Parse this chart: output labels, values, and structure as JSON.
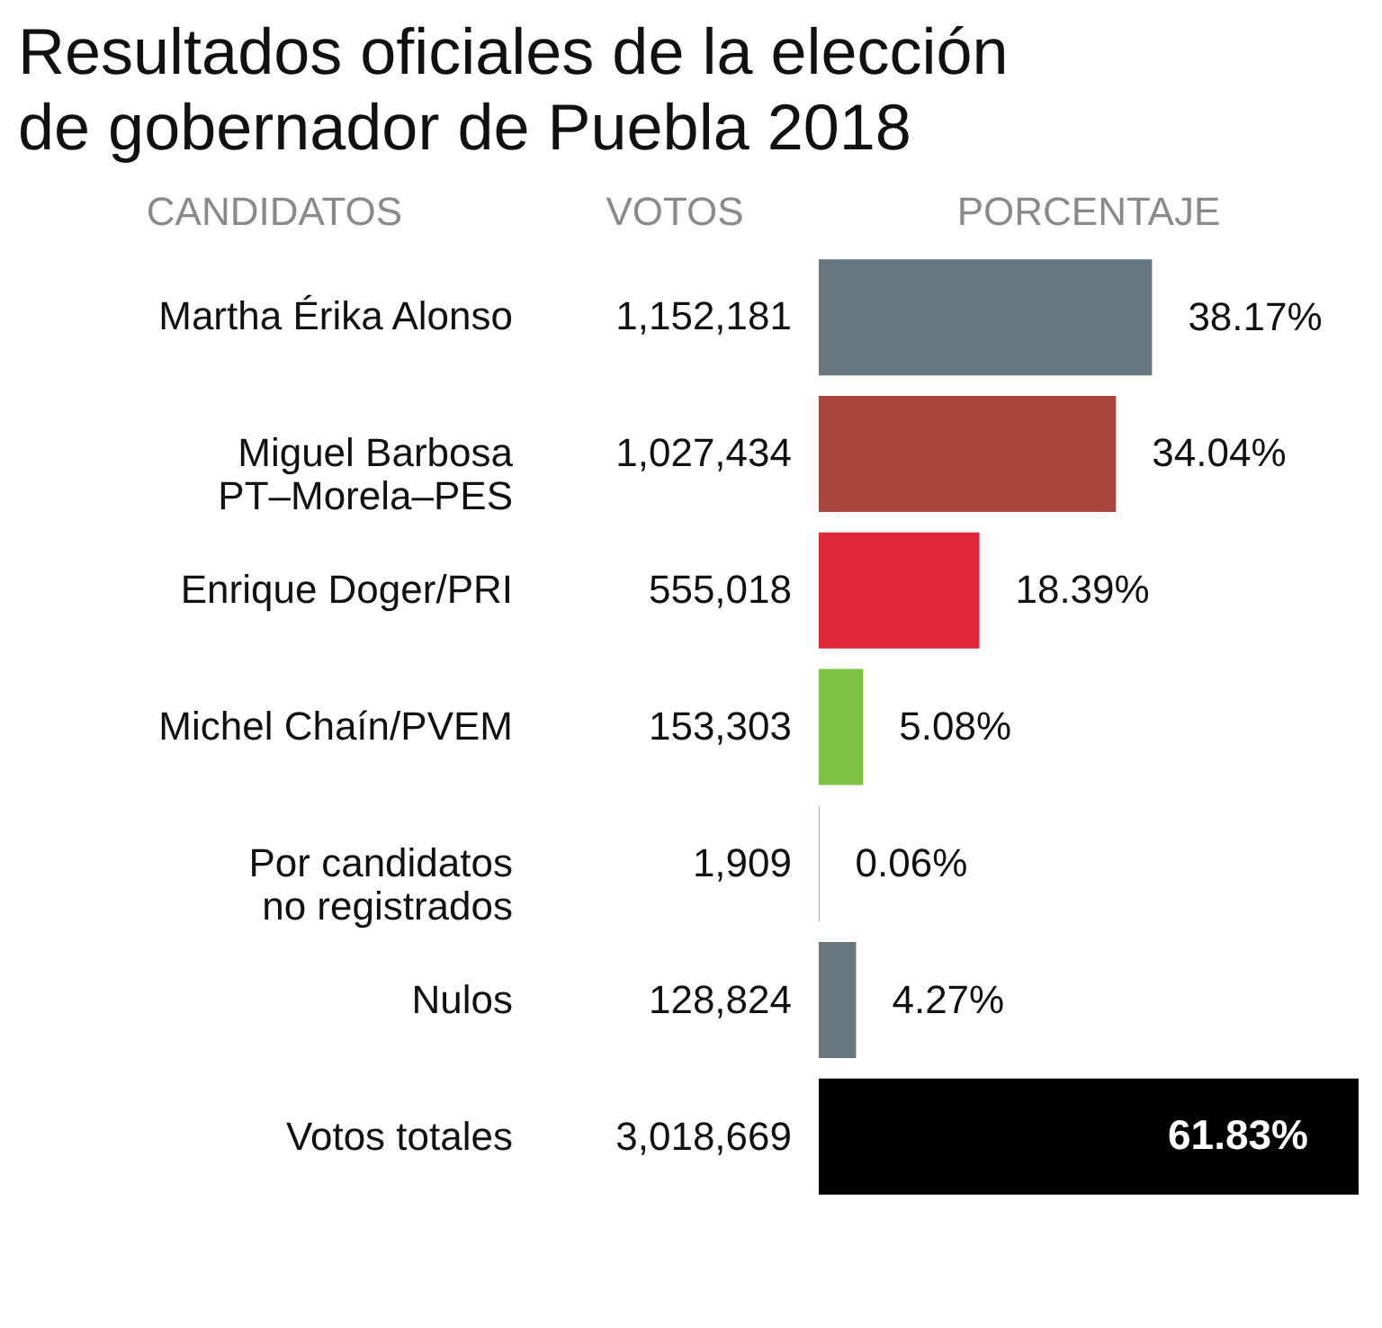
{
  "chart_data": {
    "type": "bar",
    "orientation": "horizontal",
    "title": "Resultados oficiales de la elección de gobernador de Puebla 2018",
    "ylabel": "CANDIDATOS",
    "xlabel": "PORCENTAJE",
    "categories": [
      "Martha Érika Alonso",
      "Miguel Barbosa PT–Morela–PES",
      "Enrique Doger/PRI",
      "Michel Chaín/PVEM",
      "Por candidatos no registrados",
      "Nulos",
      "Votos totales"
    ],
    "values": [
      38.17,
      34.04,
      18.39,
      5.08,
      0.06,
      4.27,
      61.83
    ],
    "colors": [
      "#66767f",
      "#a8453d",
      "#e0283a",
      "#7dc242",
      "#66767f",
      "#66767f",
      "#000000"
    ],
    "value_labels": [
      "38.17%",
      "34.04%",
      "18.39%",
      "5.08%",
      "0.06%",
      "4.27%",
      "61.83%"
    ],
    "annotations": [
      "VOTOS",
      "1,152,181",
      "1,027,434",
      "555,018",
      "153,303",
      "1,909",
      "128,824",
      "3,018,669"
    ]
  }
}
